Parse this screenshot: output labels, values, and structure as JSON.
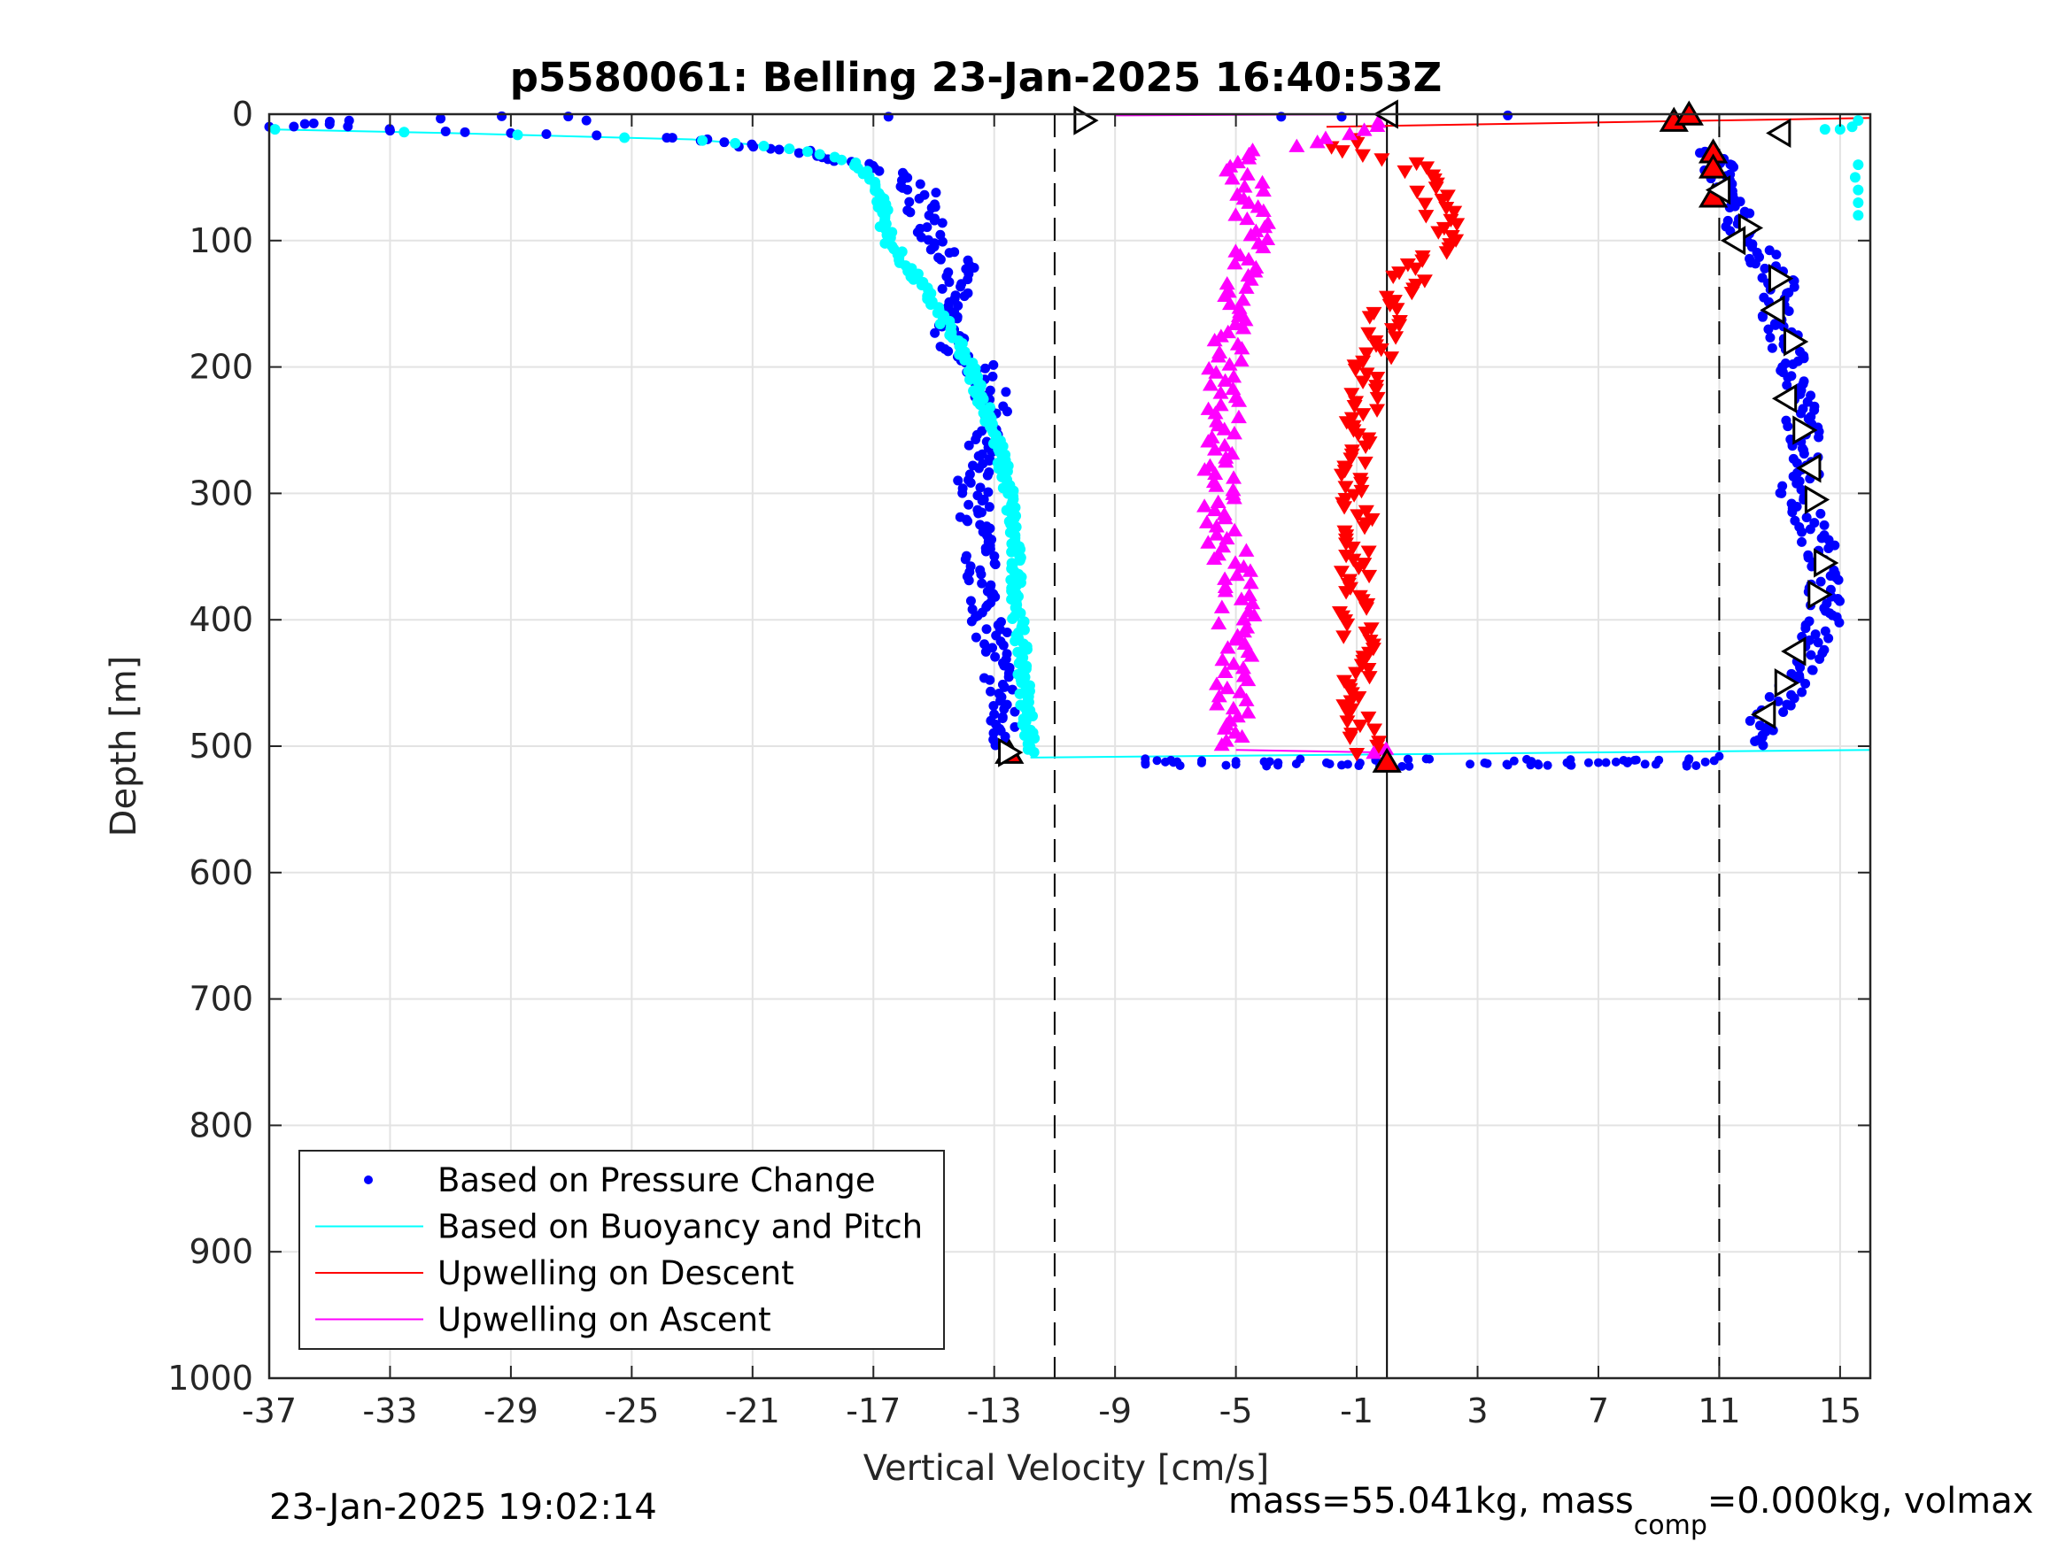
{
  "chart_data": {
    "type": "scatter",
    "title": "p5580061: Belling 23-Jan-2025 16:40:53Z",
    "xlabel": "Vertical Velocity [cm/s]",
    "ylabel": "Depth [m]",
    "xlim": [
      -37,
      16
    ],
    "ylim": [
      0,
      1000
    ],
    "y_reversed": true,
    "xticks": [
      -37,
      -33,
      -29,
      -25,
      -21,
      -17,
      -13,
      -9,
      -5,
      -1,
      3,
      7,
      11,
      15
    ],
    "yticks": [
      0,
      100,
      200,
      300,
      400,
      500,
      600,
      700,
      800,
      900,
      1000
    ],
    "grid": true,
    "legend_position": "bottom-left",
    "reference_lines": {
      "dashed_x": [
        -11,
        11
      ],
      "solid_x": [
        0
      ]
    },
    "colors": {
      "pressure": "#0000ff",
      "buoyancy": "#00ffff",
      "descent": "#ff0000",
      "ascent": "#ff00ff",
      "markers": "#000000"
    },
    "series": [
      {
        "name": "Based on Pressure Change",
        "style": "dots",
        "profiles": [
          {
            "depth": [
              1,
              5,
              9,
              12,
              15,
              18,
              22,
              26,
              30,
              40,
              50,
              60,
              80,
              100,
              120,
              150,
              180,
              200,
              230,
              260,
              300,
              350,
              400,
              450,
              480,
              500
            ],
            "velocity": [
              -26.5,
              -35,
              -36.5,
              -33,
              -29,
              -24,
              -22,
              -21,
              -19.5,
              -17.5,
              -16,
              -15.5,
              -15.3,
              -14.8,
              -14.2,
              -14.5,
              -14.5,
              -13.5,
              -13,
              -13.5,
              -13.7,
              -13.5,
              -13.2,
              -12.8,
              -12.8,
              -12.5
            ]
          },
          {
            "depth": [
              30,
              50,
              80,
              100,
              130,
              160,
              200,
              250,
              280,
              300,
              350,
              400,
              450,
              480,
              500
            ],
            "velocity": [
              10.8,
              11,
              11.5,
              12,
              13,
              12.8,
              13.5,
              13.8,
              14,
              13.5,
              14.5,
              14.5,
              13.5,
              12.5,
              12
            ]
          },
          {
            "depth": [
              510,
              512,
              514,
              515,
              516,
              516,
              515,
              514,
              513,
              512,
              511,
              510,
              508
            ],
            "velocity": [
              -8,
              -5,
              -3,
              -1.5,
              0,
              0.5,
              4,
              5,
              7,
              8,
              9,
              10,
              11
            ]
          }
        ]
      },
      {
        "name": "Based on Buoyancy and Pitch",
        "style": "line+dots",
        "depth": [
          12,
          15,
          20,
          25,
          30,
          40,
          60,
          100,
          150,
          200,
          250,
          300,
          350,
          400,
          450,
          500,
          505
        ],
        "velocity": [
          -37,
          -31,
          -23,
          -20.5,
          -19,
          -17.5,
          -16.8,
          -16.5,
          -15,
          -13.8,
          -13,
          -12.5,
          -12.3,
          -12.2,
          -12,
          -11.8,
          -11.8
        ]
      },
      {
        "name": "Upwelling on Descent",
        "style": "down-triangles",
        "depth": [
          25,
          35,
          50,
          70,
          90,
          110,
          150,
          200,
          250,
          300,
          350,
          400,
          450,
          500
        ],
        "velocity": [
          -2,
          0,
          1.5,
          1.5,
          2,
          1.5,
          0,
          -0.5,
          -0.8,
          -1,
          -1,
          -1,
          -1,
          -0.8
        ]
      },
      {
        "name": "Upwelling on Ascent",
        "style": "up-triangles",
        "depth": [
          500,
          450,
          400,
          350,
          300,
          250,
          200,
          150,
          100,
          60,
          30,
          20,
          10,
          3
        ],
        "velocity": [
          -5,
          -5,
          -5,
          -5.2,
          -5.5,
          -5.5,
          -5.5,
          -5,
          -4.5,
          -4.5,
          -5,
          -2,
          -1,
          0
        ]
      }
    ],
    "red_markers": [
      {
        "x": -12.5,
        "y": 505
      },
      {
        "x": 0,
        "y": 512
      },
      {
        "x": 9.5,
        "y": 5
      },
      {
        "x": 10,
        "y": 0
      },
      {
        "x": 10.8,
        "y": 30
      },
      {
        "x": 10.8,
        "y": 42
      },
      {
        "x": 10.8,
        "y": 65
      }
    ],
    "open_markers": [
      {
        "x": -10,
        "y": 5,
        "dir": "right"
      },
      {
        "x": 0,
        "y": 0,
        "dir": "left"
      },
      {
        "x": 13,
        "y": 15,
        "dir": "left"
      },
      {
        "x": 11,
        "y": 60,
        "dir": "left"
      },
      {
        "x": 12,
        "y": 90,
        "dir": "right"
      },
      {
        "x": 11.5,
        "y": 100,
        "dir": "left"
      },
      {
        "x": 13,
        "y": 130,
        "dir": "right"
      },
      {
        "x": 12.8,
        "y": 155,
        "dir": "left"
      },
      {
        "x": 13.5,
        "y": 180,
        "dir": "right"
      },
      {
        "x": 13.2,
        "y": 225,
        "dir": "left"
      },
      {
        "x": 13.8,
        "y": 250,
        "dir": "right"
      },
      {
        "x": 14,
        "y": 280,
        "dir": "left"
      },
      {
        "x": 14.2,
        "y": 305,
        "dir": "right"
      },
      {
        "x": 14.5,
        "y": 355,
        "dir": "right"
      },
      {
        "x": 14.3,
        "y": 380,
        "dir": "right"
      },
      {
        "x": 13.5,
        "y": 425,
        "dir": "left"
      },
      {
        "x": 13.2,
        "y": 450,
        "dir": "right"
      },
      {
        "x": 12.5,
        "y": 475,
        "dir": "left"
      },
      {
        "x": -12.5,
        "y": 505,
        "dir": "right"
      }
    ]
  },
  "footer": {
    "timestamp": "23-Jan-2025 19:02:14",
    "mass_text": "mass=55.041kg, mass",
    "mass_sub": "comp",
    "mass_text2": "=0.000kg, volmax"
  }
}
